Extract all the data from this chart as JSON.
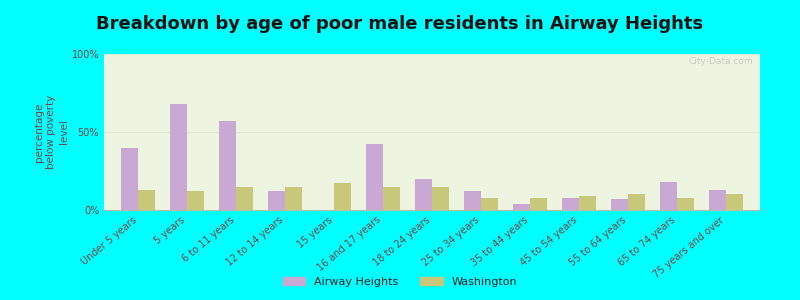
{
  "title": "Breakdown by age of poor male residents in Airway Heights",
  "ylabel": "percentage\nbelow poverty\nlevel",
  "categories": [
    "Under 5 years",
    "5 years",
    "6 to 11 years",
    "12 to 14 years",
    "15 years",
    "16 and 17 years",
    "18 to 24 years",
    "25 to 34 years",
    "35 to 44 years",
    "45 to 54 years",
    "55 to 64 years",
    "65 to 74 years",
    "75 years and over"
  ],
  "airway_heights": [
    40,
    68,
    57,
    12,
    0,
    42,
    20,
    12,
    4,
    8,
    7,
    18,
    13
  ],
  "washington": [
    13,
    12,
    15,
    15,
    17,
    15,
    15,
    8,
    8,
    9,
    10,
    8,
    10
  ],
  "airway_color": "#c9a8d4",
  "washington_color": "#c8c87a",
  "bg_color": "#edf5e0",
  "outer_bg": "#00ffff",
  "bar_width": 0.35,
  "ylim": [
    0,
    100
  ],
  "yticks": [
    0,
    50,
    100
  ],
  "ytick_labels": [
    "0%",
    "50%",
    "100%"
  ],
  "title_fontsize": 13,
  "axis_label_fontsize": 7.5,
  "tick_fontsize": 7,
  "legend_labels": [
    "Airway Heights",
    "Washington"
  ],
  "watermark": "City-Data.com"
}
